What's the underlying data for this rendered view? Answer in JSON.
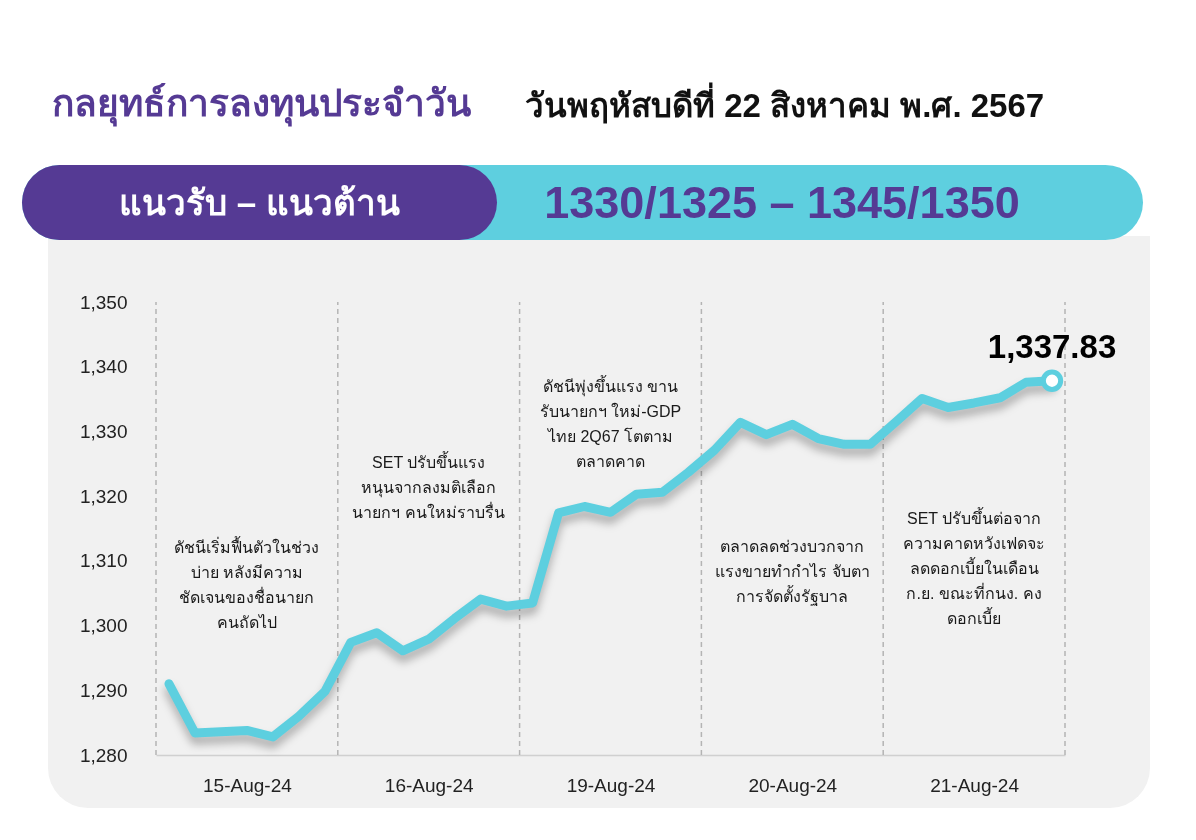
{
  "chart_data": {
    "type": "line",
    "title": "กลยุทธ์การลงทุนประจำวัน",
    "subtitle": "วันพฤหัสบดีที่ 22 สิงหาคม พ.ศ. 2567",
    "annotations": [
      "แนวรับ – แนวต้าน",
      "1330/1325 – 1345/1350",
      "ดัชนีเริ่มฟื้นตัวในช่วง\nบ่าย หลังมีความ\nชัดเจนของชื่อนายก\nคนถัดไป",
      "SET ปรับขึ้นแรง\nหนุนจากลงมติเลือก\nนายกฯ คนใหม่ราบรื่น",
      "ดัชนีพุ่งขึ้นแรง ขาน\nรับนายกฯ ใหม่-GDP\nไทย 2Q67 โตตาม\nตลาดคาด",
      "ตลาดลดช่วงบวกจาก\nแรงขายทำกำไร จับตา\nการจัดตั้งรัฐบาล",
      "SET ปรับขึ้นต่อจาก\nความคาดหวังเฟดจะ\nลดดอกเบี้ยในเดือน\nก.ย. ขณะที่กนง. คง\nดอกเบี้ย"
    ],
    "categories": [
      null,
      null,
      null,
      "15-Aug-24",
      null,
      null,
      null,
      null,
      null,
      null,
      "16-Aug-24",
      null,
      null,
      null,
      null,
      null,
      null,
      "19-Aug-24",
      null,
      null,
      null,
      null,
      null,
      null,
      "20-Aug-24",
      null,
      null,
      null,
      null,
      null,
      null,
      "21-Aug-24",
      null,
      null,
      null
    ],
    "values": [
      1291,
      1283.4,
      1283.6,
      1283.8,
      1282.8,
      1286,
      1289.8,
      1297.4,
      1298.9,
      1296.1,
      1297.9,
      1301.1,
      1304.1,
      1303,
      1303.5,
      1317.4,
      1318.4,
      1317.5,
      1320.3,
      1320.6,
      1323.7,
      1327.1,
      1331.4,
      1329.5,
      1331.1,
      1328.9,
      1328,
      1328,
      1331.5,
      1335.1,
      1333.7,
      1334.4,
      1335.2,
      1337.6,
      1337.83
    ],
    "value_labels": [
      null,
      null,
      null,
      null,
      null,
      null,
      null,
      null,
      null,
      null,
      null,
      null,
      null,
      null,
      null,
      null,
      null,
      null,
      null,
      null,
      null,
      null,
      null,
      null,
      null,
      null,
      null,
      null,
      null,
      null,
      null,
      null,
      null,
      null,
      "1,337.83"
    ],
    "color": "#5dcfdf",
    "ylim": [
      1280,
      1350
    ],
    "yticks": [
      {
        "value": 1280,
        "label": "1,280"
      },
      {
        "value": 1290,
        "label": "1,290"
      },
      {
        "value": 1300,
        "label": "1,300"
      },
      {
        "value": 1310,
        "label": "1,310"
      },
      {
        "value": 1320,
        "label": "1,320"
      },
      {
        "value": 1330,
        "label": "1,330"
      },
      {
        "value": 1340,
        "label": "1,340"
      },
      {
        "value": 1350,
        "label": "1,350"
      }
    ],
    "grid": "x"
  }
}
